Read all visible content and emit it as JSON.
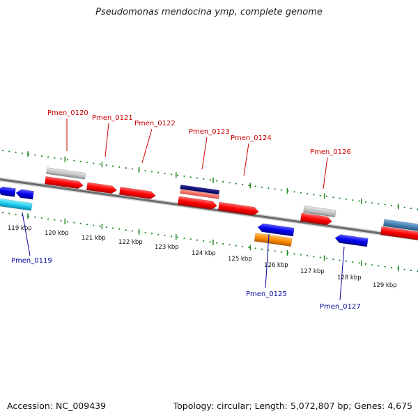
{
  "title": "Pseudomonas mendocina ymp, complete genome",
  "footer": {
    "accession": "Accession: NC_009439",
    "summary": "Topology: circular; Length: 5,072,807 bp; Genes: 4,675"
  },
  "axis_ticks": [
    "119 kbp",
    "120 kbp",
    "121 kbp",
    "122 kbp",
    "123 kbp",
    "124 kbp",
    "125 kbp",
    "126 kbp",
    "127 kbp",
    "128 kbp",
    "129 kbp"
  ],
  "genes_forward": [
    "Pmen_0120",
    "Pmen_0121",
    "Pmen_0122",
    "Pmen_0123",
    "Pmen_0124",
    "Pmen_0126"
  ],
  "genes_reverse": [
    "Pmen_0119",
    "Pmen_0125",
    "Pmen_0127"
  ],
  "colors": {
    "forward_label": "#cc0000",
    "reverse_label": "#000099",
    "cds": "#ff0000",
    "reverse_cds": "#0000ee",
    "rna": "#bbbbbb",
    "other": "#ff8c00",
    "cyan": "#22ccee",
    "steel": "#4682b4",
    "ticks": "#228b22",
    "backbone": "#777777"
  }
}
